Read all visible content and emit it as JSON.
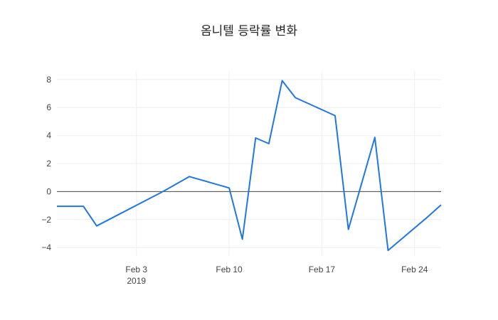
{
  "chart_data": {
    "type": "line",
    "title": "옴니텔 등락률 변화",
    "xlabel": "",
    "ylabel": "",
    "x_range": [
      "2019-01-28",
      "2019-02-26"
    ],
    "ylim": [
      -4.6,
      8.6
    ],
    "x_ticks": [
      {
        "date": "2019-02-03",
        "label": "Feb 3",
        "sublabel": "2019"
      },
      {
        "date": "2019-02-10",
        "label": "Feb 10",
        "sublabel": ""
      },
      {
        "date": "2019-02-17",
        "label": "Feb 17",
        "sublabel": ""
      },
      {
        "date": "2019-02-24",
        "label": "Feb 24",
        "sublabel": ""
      }
    ],
    "y_ticks": [
      {
        "value": -4,
        "label": "−4"
      },
      {
        "value": -2,
        "label": "−2"
      },
      {
        "value": 0,
        "label": "0"
      },
      {
        "value": 2,
        "label": "2"
      },
      {
        "value": 4,
        "label": "4"
      },
      {
        "value": 6,
        "label": "6"
      },
      {
        "value": 8,
        "label": "8"
      }
    ],
    "grid": true,
    "zero_line": true,
    "legend": "none",
    "series": [
      {
        "color": "#1f77e4",
        "x": [
          "2019-01-28",
          "2019-01-29",
          "2019-01-30",
          "2019-01-31",
          "2019-02-05",
          "2019-02-07",
          "2019-02-10",
          "2019-02-11",
          "2019-02-12",
          "2019-02-13",
          "2019-02-14",
          "2019-02-15",
          "2019-02-18",
          "2019-02-19",
          "2019-02-21",
          "2019-02-22",
          "2019-02-25",
          "2019-02-26"
        ],
        "y": [
          -1.05,
          -1.05,
          -1.05,
          -2.45,
          0.0,
          1.07,
          0.26,
          -3.4,
          3.83,
          3.42,
          7.92,
          6.7,
          5.42,
          -2.7,
          3.87,
          -4.2,
          -1.8,
          -0.95
        ]
      }
    ]
  }
}
